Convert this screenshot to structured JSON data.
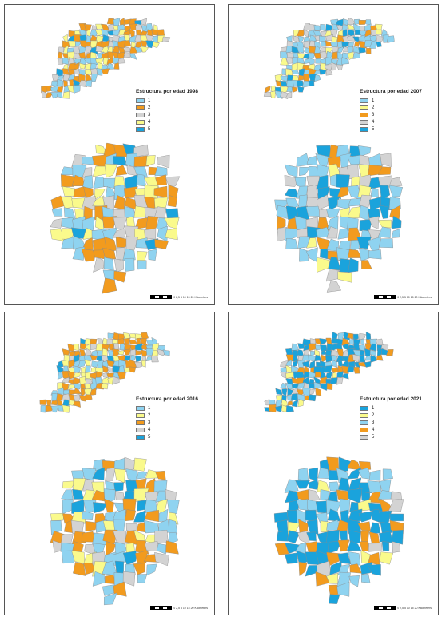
{
  "colors": {
    "light_blue": "#8fd3f0",
    "orange": "#f29b1e",
    "gray": "#d3d3d3",
    "yellow": "#fafa8c",
    "dark_blue": "#1aa3dc",
    "border": "#8a8a8a"
  },
  "maps": [
    {
      "legend_title": "Estructura por edad 1998",
      "legend": [
        {
          "label": "1",
          "color": "#8fd3f0"
        },
        {
          "label": "2",
          "color": "#f29b1e"
        },
        {
          "label": "3",
          "color": "#d3d3d3"
        },
        {
          "label": "4",
          "color": "#fafa8c"
        },
        {
          "label": "5",
          "color": "#1aa3dc"
        }
      ],
      "palette": [
        "#8fd3f0",
        "#f29b1e",
        "#d3d3d3",
        "#fafa8c",
        "#1aa3dc"
      ],
      "weights": [
        0.25,
        0.33,
        0.2,
        0.17,
        0.05
      ],
      "scale_text": "0 2,5 5   10   15   20 Kilometers"
    },
    {
      "legend_title": "Estructura por edad 2007",
      "legend": [
        {
          "label": "1",
          "color": "#8fd3f0"
        },
        {
          "label": "2",
          "color": "#fafa8c"
        },
        {
          "label": "3",
          "color": "#f29b1e"
        },
        {
          "label": "4",
          "color": "#d3d3d3"
        },
        {
          "label": "5",
          "color": "#1aa3dc"
        }
      ],
      "palette": [
        "#8fd3f0",
        "#fafa8c",
        "#f29b1e",
        "#d3d3d3",
        "#1aa3dc"
      ],
      "weights": [
        0.4,
        0.12,
        0.14,
        0.2,
        0.14
      ],
      "scale_text": "0 2,5 5   10   15   20 Kilometers"
    },
    {
      "legend_title": "Estructura por edad 2016",
      "legend": [
        {
          "label": "1",
          "color": "#8fd3f0"
        },
        {
          "label": "2",
          "color": "#fafa8c"
        },
        {
          "label": "3",
          "color": "#f29b1e"
        },
        {
          "label": "4",
          "color": "#d3d3d3"
        },
        {
          "label": "5",
          "color": "#1aa3dc"
        }
      ],
      "palette": [
        "#8fd3f0",
        "#fafa8c",
        "#f29b1e",
        "#d3d3d3",
        "#1aa3dc"
      ],
      "weights": [
        0.3,
        0.18,
        0.3,
        0.12,
        0.1
      ],
      "scale_text": "0 2,5 5   10   15   20 Kilometers"
    },
    {
      "legend_title": "Estructura por edad 2021",
      "legend": [
        {
          "label": "1",
          "color": "#1aa3dc"
        },
        {
          "label": "2",
          "color": "#fafa8c"
        },
        {
          "label": "3",
          "color": "#8fd3f0"
        },
        {
          "label": "4",
          "color": "#f29b1e"
        },
        {
          "label": "5",
          "color": "#d3d3d3"
        }
      ],
      "palette": [
        "#1aa3dc",
        "#fafa8c",
        "#8fd3f0",
        "#f29b1e",
        "#d3d3d3"
      ],
      "weights": [
        0.48,
        0.06,
        0.18,
        0.22,
        0.06
      ],
      "scale_text": "0 2,5 5   10   15   20 Kilometers"
    }
  ]
}
